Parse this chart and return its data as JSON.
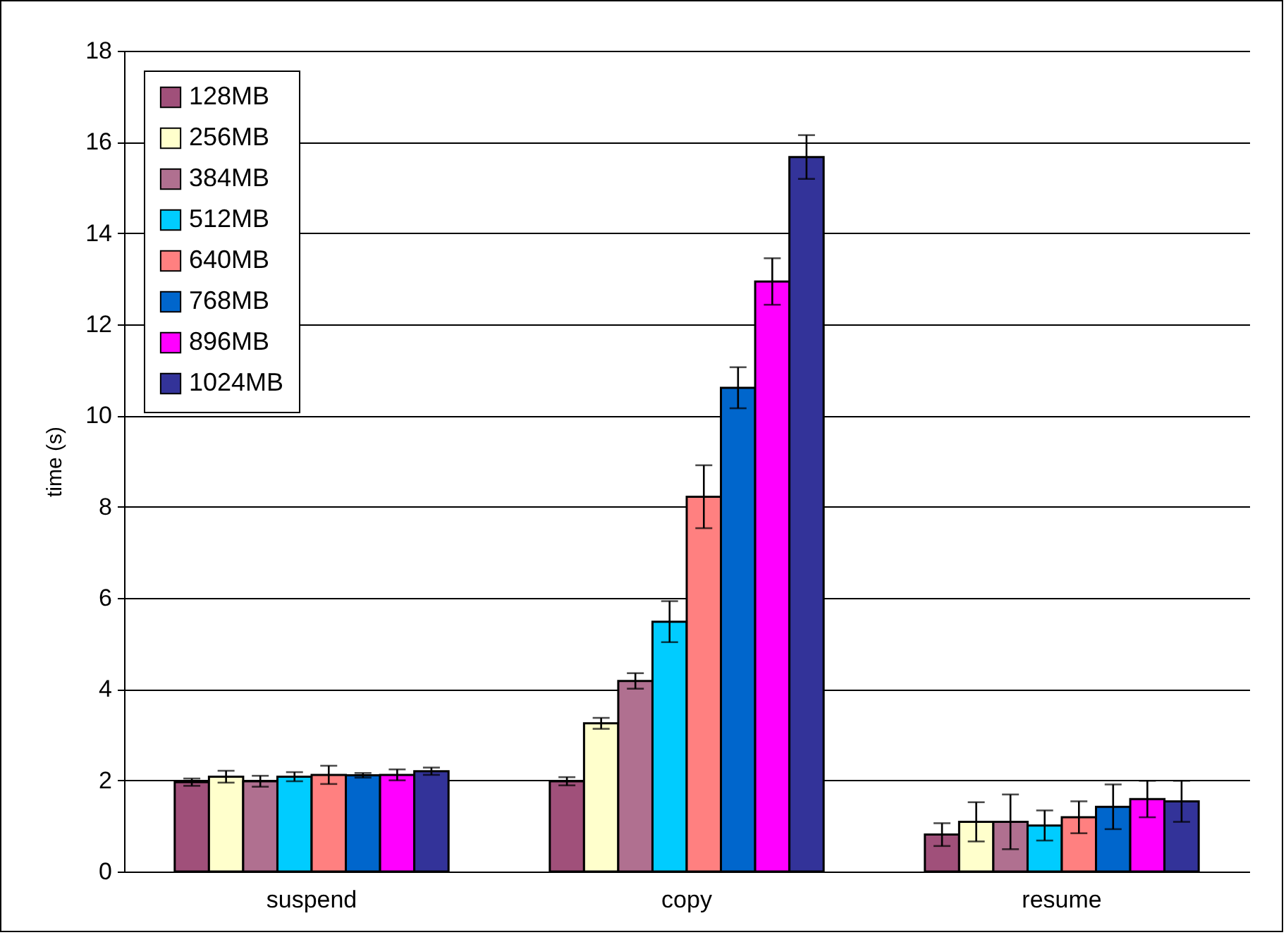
{
  "chart_data": {
    "type": "bar",
    "ylabel": "time (s)",
    "categories": [
      "suspend",
      "copy",
      "resume"
    ],
    "ylim": [
      0,
      18
    ],
    "yticks": [
      0,
      2,
      4,
      6,
      8,
      10,
      12,
      14,
      16,
      18
    ],
    "grid": "y",
    "legend": "top left",
    "series": [
      {
        "name": "128MB",
        "color": "#a0507a",
        "values": [
          1.96,
          1.98,
          0.81
        ],
        "errors": [
          0.08,
          0.09,
          0.25
        ]
      },
      {
        "name": "256MB",
        "color": "#ffffcc",
        "values": [
          2.08,
          3.25,
          1.09
        ],
        "errors": [
          0.13,
          0.12,
          0.43
        ]
      },
      {
        "name": "384MB",
        "color": "#b07090",
        "values": [
          1.98,
          4.18,
          1.09
        ],
        "errors": [
          0.12,
          0.17,
          0.6
        ]
      },
      {
        "name": "512MB",
        "color": "#00ccff",
        "values": [
          2.08,
          5.48,
          1.01
        ],
        "errors": [
          0.1,
          0.45,
          0.33
        ]
      },
      {
        "name": "640MB",
        "color": "#ff8080",
        "values": [
          2.12,
          8.22,
          1.19
        ],
        "errors": [
          0.2,
          0.69,
          0.35
        ]
      },
      {
        "name": "768MB",
        "color": "#0066cc",
        "values": [
          2.11,
          10.61,
          1.42
        ],
        "errors": [
          0.05,
          0.45,
          0.49
        ]
      },
      {
        "name": "896MB",
        "color": "#ff00ff",
        "values": [
          2.12,
          12.94,
          1.59
        ],
        "errors": [
          0.12,
          0.51,
          0.4
        ]
      },
      {
        "name": "1024MB",
        "color": "#333399",
        "values": [
          2.2,
          15.67,
          1.54
        ],
        "errors": [
          0.08,
          0.48,
          0.45
        ]
      }
    ]
  }
}
